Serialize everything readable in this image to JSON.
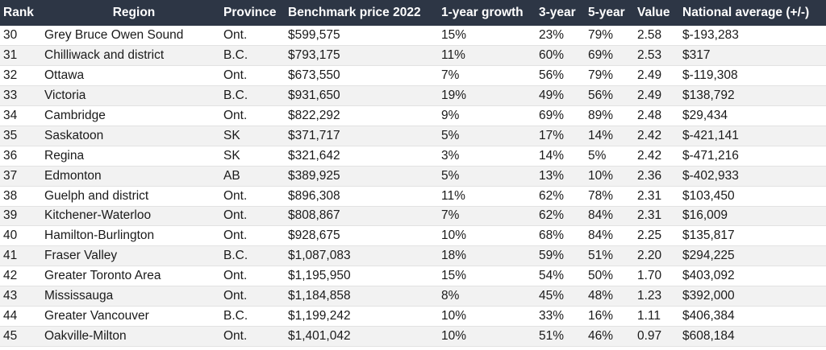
{
  "table": {
    "headers": [
      "Rank",
      "Region",
      "Province",
      "Benchmark price 2022",
      "1-year growth",
      "3-year",
      "5-year",
      "Value",
      "National average (+/-)"
    ],
    "rows": [
      [
        "30",
        "Grey Bruce Owen Sound",
        "Ont.",
        "$599,575",
        "15%",
        "23%",
        "79%",
        "2.58",
        "$-193,283"
      ],
      [
        "31",
        "Chilliwack and district",
        "B.C.",
        "$793,175",
        "11%",
        "60%",
        "69%",
        "2.53",
        "$317"
      ],
      [
        "32",
        "Ottawa",
        "Ont.",
        "$673,550",
        "7%",
        "56%",
        "79%",
        "2.49",
        "$-119,308"
      ],
      [
        "33",
        "Victoria",
        "B.C.",
        "$931,650",
        "19%",
        "49%",
        "56%",
        "2.49",
        "$138,792"
      ],
      [
        "34",
        "Cambridge",
        "Ont.",
        "$822,292",
        "9%",
        "69%",
        "89%",
        "2.48",
        "$29,434"
      ],
      [
        "35",
        "Saskatoon",
        "SK",
        "$371,717",
        "5%",
        "17%",
        "14%",
        "2.42",
        "$-421,141"
      ],
      [
        "36",
        "Regina",
        "SK",
        "$321,642",
        "3%",
        "14%",
        "5%",
        "2.42",
        "$-471,216"
      ],
      [
        "37",
        "Edmonton",
        "AB",
        "$389,925",
        "5%",
        "13%",
        "10%",
        "2.36",
        "$-402,933"
      ],
      [
        "38",
        "Guelph and district",
        "Ont.",
        "$896,308",
        "11%",
        "62%",
        "78%",
        "2.31",
        "$103,450"
      ],
      [
        "39",
        "Kitchener-Waterloo",
        "Ont.",
        "$808,867",
        "7%",
        "62%",
        "84%",
        "2.31",
        "$16,009"
      ],
      [
        "40",
        "Hamilton-Burlington",
        "Ont.",
        "$928,675",
        "10%",
        "68%",
        "84%",
        "2.25",
        "$135,817"
      ],
      [
        "41",
        "Fraser Valley",
        "B.C.",
        "$1,087,083",
        "18%",
        "59%",
        "51%",
        "2.20",
        "$294,225"
      ],
      [
        "42",
        "Greater Toronto Area",
        "Ont.",
        "$1,195,950",
        "15%",
        "54%",
        "50%",
        "1.70",
        "$403,092"
      ],
      [
        "43",
        "Mississauga",
        "Ont.",
        "$1,184,858",
        "8%",
        "45%",
        "48%",
        "1.23",
        "$392,000"
      ],
      [
        "44",
        "Greater Vancouver",
        "B.C.",
        "$1,199,242",
        "10%",
        "33%",
        "16%",
        "1.11",
        "$406,384"
      ],
      [
        "45",
        "Oakville-Milton",
        "Ont.",
        "$1,401,042",
        "10%",
        "51%",
        "46%",
        "0.97",
        "$608,184"
      ]
    ]
  },
  "colors": {
    "header_bg": "#2d3645",
    "header_text": "#ffffff",
    "row_alt": "#f2f2f2"
  }
}
